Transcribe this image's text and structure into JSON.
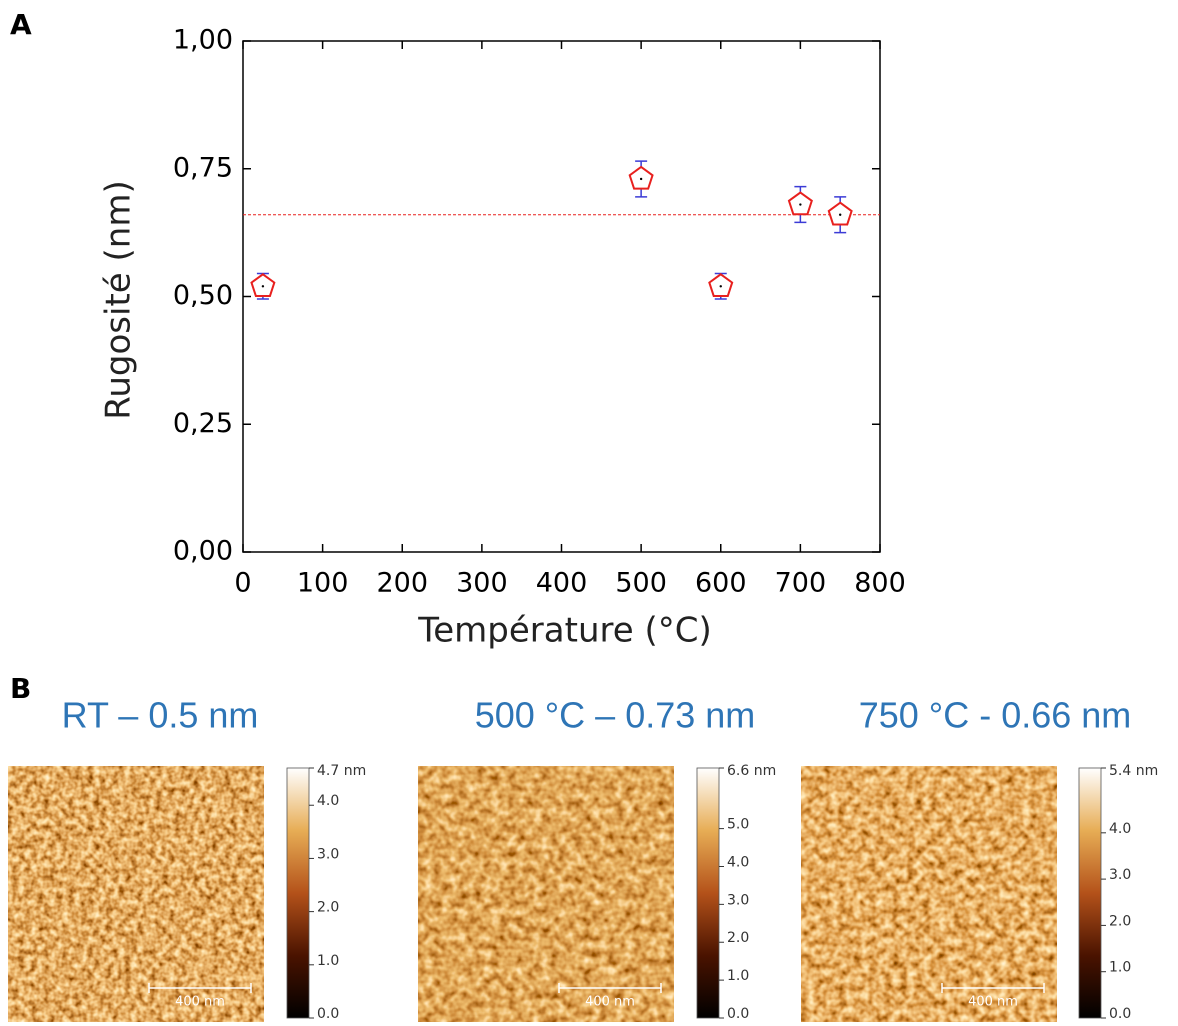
{
  "panel_labels": [
    "A",
    "B"
  ],
  "chart_data": {
    "type": "scatter",
    "x_label": "Température (°C)",
    "y_label": "Rugosité (nm)",
    "x": [
      25,
      500,
      600,
      700,
      750
    ],
    "values": [
      0.52,
      0.73,
      0.52,
      0.68,
      0.66
    ],
    "errors": [
      0.025,
      0.035,
      0.025,
      0.035,
      0.035
    ],
    "color": "#e8201e",
    "error_color": "#3b3bd6",
    "reference_line": 0.66,
    "reference_color": "#e8201e",
    "xlim": [
      0,
      800
    ],
    "xticks": [
      0,
      100,
      200,
      300,
      400,
      500,
      600,
      700,
      800
    ],
    "ylim": [
      0,
      1
    ],
    "yticks": [
      {
        "value": 0,
        "label": "0,00"
      },
      {
        "value": 0.25,
        "label": "0,25"
      },
      {
        "value": 0.5,
        "label": "0,50"
      },
      {
        "value": 0.75,
        "label": "0,75"
      },
      {
        "value": 1,
        "label": "1,00"
      }
    ],
    "grid": false
  },
  "afm_images": [
    {
      "title": "RT – 0.5 nm",
      "scale_bar": "400 nm",
      "colorbar": {
        "max": {
          "value": 4.7,
          "label": "4.7 nm"
        },
        "ticks": [
          {
            "value": 0,
            "label": "0.0"
          },
          {
            "value": 1,
            "label": "1.0"
          },
          {
            "value": 2,
            "label": "2.0"
          },
          {
            "value": 3,
            "label": "3.0"
          },
          {
            "value": 4,
            "label": "4.0"
          }
        ]
      }
    },
    {
      "title": "500 °C – 0.73 nm",
      "scale_bar": "400 nm",
      "colorbar": {
        "max": {
          "value": 6.6,
          "label": "6.6 nm"
        },
        "ticks": [
          {
            "value": 0,
            "label": "0.0"
          },
          {
            "value": 1,
            "label": "1.0"
          },
          {
            "value": 2,
            "label": "2.0"
          },
          {
            "value": 3,
            "label": "3.0"
          },
          {
            "value": 4,
            "label": "4.0"
          },
          {
            "value": 5,
            "label": "5.0"
          }
        ]
      }
    },
    {
      "title": "750 °C - 0.66 nm",
      "scale_bar": "400 nm",
      "colorbar": {
        "max": {
          "value": 5.4,
          "label": "5.4 nm"
        },
        "ticks": [
          {
            "value": 0,
            "label": "0.0"
          },
          {
            "value": 1,
            "label": "1.0"
          },
          {
            "value": 2,
            "label": "2.0"
          },
          {
            "value": 3,
            "label": "3.0"
          },
          {
            "value": 4,
            "label": "4.0"
          }
        ]
      }
    }
  ]
}
